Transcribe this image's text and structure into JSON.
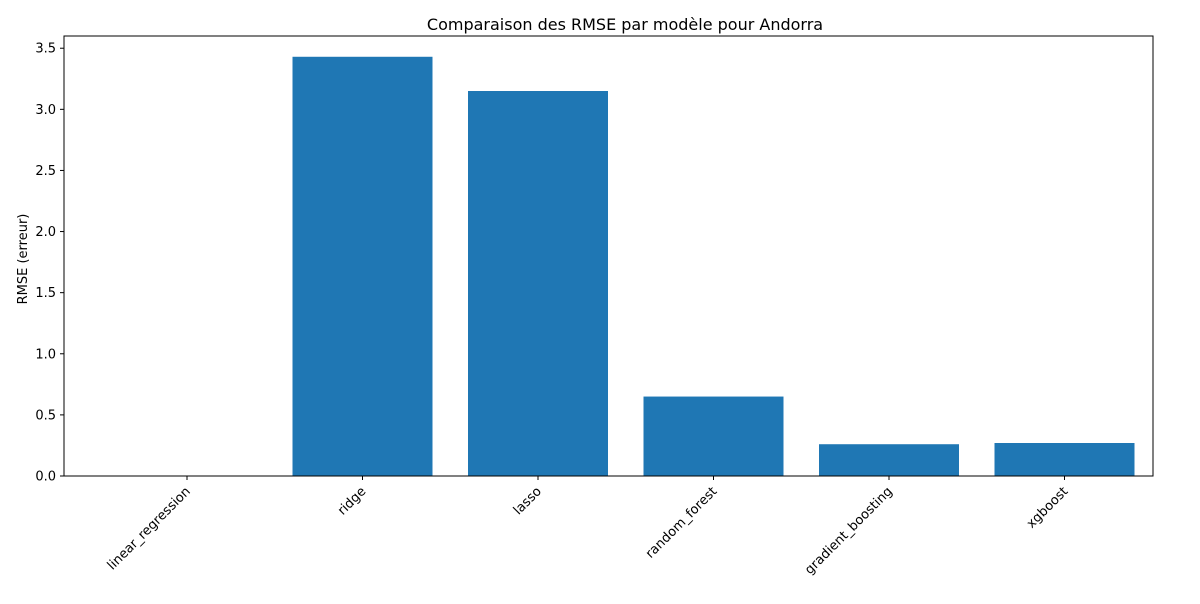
{
  "chart_data": {
    "type": "bar",
    "title": "Comparaison des RMSE par modèle pour Andorra",
    "xlabel": "",
    "ylabel": "RMSE (erreur)",
    "categories": [
      "linear_regression",
      "ridge",
      "lasso",
      "random_forest",
      "gradient_boosting",
      "xgboost"
    ],
    "values": [
      0.0,
      3.43,
      3.15,
      0.65,
      0.26,
      0.27
    ],
    "ylim": [
      0,
      3.6
    ],
    "yticks": [
      "0.0",
      "0.5",
      "1.0",
      "1.5",
      "2.0",
      "2.5",
      "3.0",
      "3.5"
    ],
    "bar_color": "#1f77b4",
    "grid": false,
    "legend": "none"
  }
}
